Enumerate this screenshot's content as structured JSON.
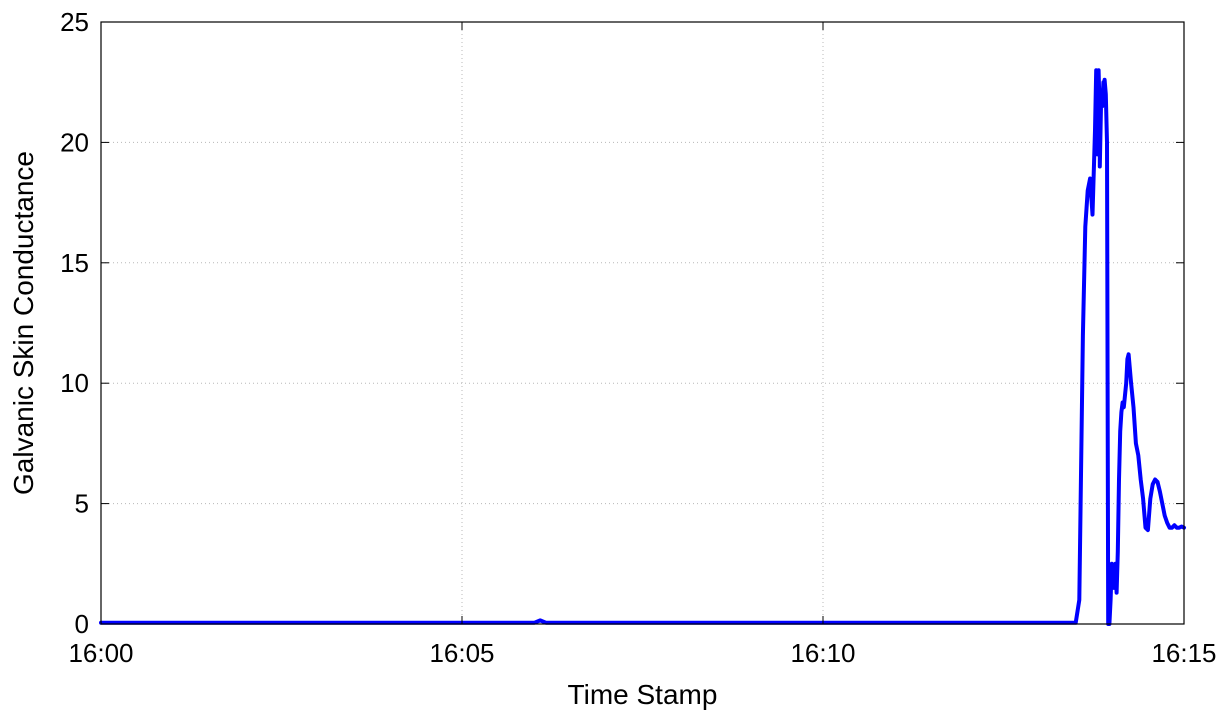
{
  "chart_data": {
    "type": "line",
    "title": "",
    "xlabel": "Time Stamp",
    "ylabel": "Galvanic Skin Conductance",
    "x_ticks": [
      "16:00",
      "16:05",
      "16:10",
      "16:15"
    ],
    "x_tick_values": [
      "16:00:00",
      "16:05:00",
      "16:10:00",
      "16:15:00"
    ],
    "y_ticks": [
      "0",
      "5",
      "10",
      "15",
      "20",
      "25"
    ],
    "y_tick_values": [
      0,
      5,
      10,
      15,
      20,
      25
    ],
    "xlim": [
      "16:00:00",
      "16:15:00"
    ],
    "ylim": [
      0,
      25
    ],
    "grid": true,
    "series": [
      {
        "color": "#0000ff",
        "x": [
          "16:00:00",
          "16:06:00",
          "16:06:05",
          "16:06:10",
          "16:13:30",
          "16:13:33",
          "16:13:36",
          "16:13:38",
          "16:13:40",
          "16:13:42",
          "16:13:44",
          "16:13:46",
          "16:13:47",
          "16:13:48",
          "16:13:49",
          "16:13:50",
          "16:13:50",
          "16:13:51",
          "16:13:52",
          "16:13:52",
          "16:13:53",
          "16:13:54",
          "16:13:54",
          "16:13:55",
          "16:13:56",
          "16:13:57",
          "16:13:58",
          "16:13:59",
          "16:14:00",
          "16:14:02",
          "16:14:03",
          "16:14:04",
          "16:14:05",
          "16:14:06",
          "16:14:07",
          "16:14:08",
          "16:14:09",
          "16:14:10",
          "16:14:11",
          "16:14:12",
          "16:14:13",
          "16:14:14",
          "16:14:16",
          "16:14:18",
          "16:14:20",
          "16:14:22",
          "16:14:24",
          "16:14:26",
          "16:14:28",
          "16:14:30",
          "16:14:32",
          "16:14:34",
          "16:14:36",
          "16:14:38",
          "16:14:40",
          "16:14:42",
          "16:14:44",
          "16:14:46",
          "16:14:48",
          "16:14:50",
          "16:14:52",
          "16:14:54",
          "16:14:56",
          "16:14:58",
          "16:15:00"
        ],
        "values": [
          0.05,
          0.05,
          0.15,
          0.05,
          0.05,
          1.0,
          12.0,
          16.5,
          18.0,
          18.5,
          17.0,
          20.5,
          23.0,
          19.5,
          23.0,
          21.0,
          19.0,
          21.5,
          22.0,
          21.5,
          22.5,
          22.3,
          22.6,
          22.0,
          20.0,
          0.0,
          0.0,
          1.0,
          2.5,
          1.5,
          2.5,
          1.3,
          3.0,
          6.0,
          8.0,
          8.8,
          9.2,
          9.0,
          9.5,
          10.0,
          11.0,
          11.2,
          10.0,
          9.0,
          7.5,
          7.0,
          6.0,
          5.2,
          4.0,
          3.9,
          5.2,
          5.8,
          6.0,
          5.9,
          5.5,
          5.0,
          4.5,
          4.2,
          4.0,
          4.0,
          4.1,
          4.0,
          4.0,
          4.05,
          4.0
        ]
      }
    ]
  }
}
